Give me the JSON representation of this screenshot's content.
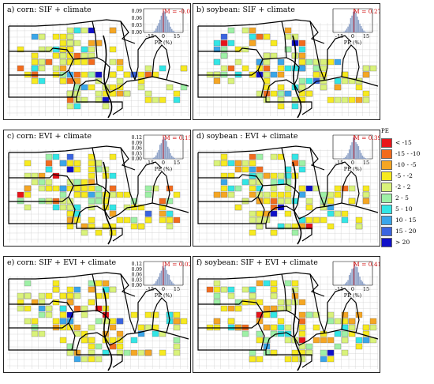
{
  "panels": [
    {
      "id": "a",
      "title": "a) corn: SIF + climate",
      "mean": "M = -0.07",
      "inset_y_ticks": [
        "0.09",
        "0.06",
        "0.03",
        "0.00"
      ],
      "inset_x_ticks": [
        "-15",
        "0",
        "15"
      ],
      "inset_xlabel": "PE (%)"
    },
    {
      "id": "b",
      "title": "b) soybean: SIF + climate",
      "mean": "M = 0.27",
      "inset_y_ticks": [],
      "inset_x_ticks": [
        "-15",
        "0",
        "15"
      ],
      "inset_xlabel": "PE (%)"
    },
    {
      "id": "c",
      "title": "c) corn: EVI + climate",
      "mean": "M = 0.15",
      "inset_y_ticks": [
        "0.12",
        "0.09",
        "0.06",
        "0.03",
        "0.00"
      ],
      "inset_x_ticks": [
        "-15",
        "0",
        "15"
      ],
      "inset_xlabel": "PE (%)"
    },
    {
      "id": "d",
      "title": "d) soybean : EVI + climate",
      "mean": "M = 0.39",
      "inset_y_ticks": [],
      "inset_x_ticks": [
        "-15",
        "0",
        "15"
      ],
      "inset_xlabel": "PE (%)"
    },
    {
      "id": "e",
      "title": "e) corn: SIF + EVI + climate",
      "mean": "M = 0.02",
      "inset_y_ticks": [
        "0.12",
        "0.09",
        "0.06",
        "0.03",
        "0.00"
      ],
      "inset_x_ticks": [
        "-15",
        "0",
        "15"
      ],
      "inset_xlabel": "PE (%)"
    },
    {
      "id": "f",
      "title": "f) soybean: SIF + EVI + climate",
      "mean": "M = 0.41",
      "inset_y_ticks": [],
      "inset_x_ticks": [
        "-15",
        "0",
        "15"
      ],
      "inset_xlabel": "PE (%)"
    }
  ],
  "legend": {
    "title": "PE",
    "items": [
      {
        "label": "< -15",
        "color": "#e8141a"
      },
      {
        "label": "-15 - -10",
        "color": "#f26b1d"
      },
      {
        "label": "-10 - -5",
        "color": "#f5a623"
      },
      {
        "label": "-5 - -2",
        "color": "#f7ea1f"
      },
      {
        "label": "-2 - 2",
        "color": "#d9f27a"
      },
      {
        "label": "2 - 5",
        "color": "#9ef0a6"
      },
      {
        "label": "5 - 10",
        "color": "#32e6e6"
      },
      {
        "label": "10 - 15",
        "color": "#3aa6ea"
      },
      {
        "label": "15 - 20",
        "color": "#3a64e0"
      },
      {
        "label": "> 20",
        "color": "#1010c8"
      }
    ]
  },
  "colors": {
    "histogram": "#8fa3c8",
    "mean_line": "#d01010",
    "boundary_thick": "#000000",
    "boundary_thin": "#bbbbbb"
  }
}
